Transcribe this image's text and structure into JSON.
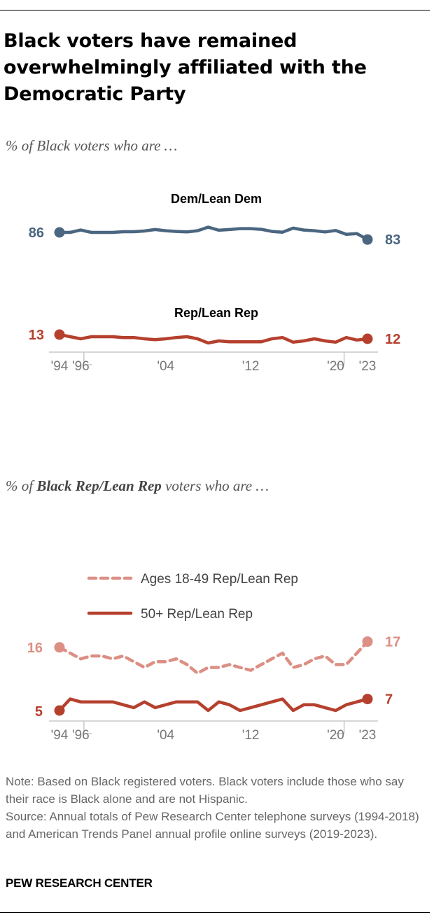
{
  "title": "Black voters have remained overwhelmingly affiliated with the Democratic Party",
  "colors": {
    "dem": "#4a6680",
    "rep": "#b5402e",
    "rep_young": "#dc8f84",
    "axis": "#c8c8c8",
    "tick_text": "#777777"
  },
  "chart_data": [
    {
      "type": "line",
      "subtitle": "% of Black voters who are …",
      "x": [
        1994,
        1995,
        1996,
        1997,
        1998,
        1999,
        2000,
        2001,
        2002,
        2003,
        2004,
        2005,
        2006,
        2007,
        2008,
        2009,
        2010,
        2011,
        2012,
        2013,
        2014,
        2015,
        2016,
        2017,
        2018,
        2019,
        2020,
        2021,
        2022,
        2023
      ],
      "ylim": [
        0,
        100
      ],
      "tick_labels": [
        {
          "x": 1994,
          "label": "'94"
        },
        {
          "x": 1996,
          "label": "'96"
        },
        {
          "x": 2004,
          "label": "'04"
        },
        {
          "x": 2012,
          "label": "'12"
        },
        {
          "x": 2020,
          "label": "'20"
        },
        {
          "x": 2023,
          "label": "'23"
        }
      ],
      "series": [
        {
          "name": "Dem/Lean Dem",
          "values": [
            86,
            86,
            87,
            86,
            86,
            86,
            86.3,
            86.3,
            86.6,
            87.2,
            86.7,
            86.4,
            86.2,
            86.7,
            88.2,
            86.9,
            87.2,
            87.6,
            87.6,
            87.3,
            86.4,
            86.1,
            87.8,
            87,
            86.7,
            86.2,
            86.8,
            85.2,
            85.5,
            83
          ],
          "start_label": "86",
          "end_label": "83"
        },
        {
          "name": "Rep/Lean Rep",
          "values": [
            13,
            12.5,
            12,
            12.5,
            12.5,
            12.5,
            12.3,
            12.3,
            12,
            11.8,
            12,
            12.3,
            12.5,
            12,
            11,
            11.5,
            11.3,
            11.3,
            11.3,
            11.3,
            12,
            12.3,
            11.2,
            11.5,
            12,
            11.5,
            11.2,
            12.3,
            11.7,
            12
          ],
          "start_label": "13",
          "end_label": "12"
        }
      ]
    },
    {
      "type": "line",
      "subtitle_prefix": "% of ",
      "subtitle_bold": "Black Rep/Lean Rep",
      "subtitle_suffix": " voters who are …",
      "x": [
        1994,
        1995,
        1996,
        1997,
        1998,
        1999,
        2000,
        2001,
        2002,
        2003,
        2004,
        2005,
        2006,
        2007,
        2008,
        2009,
        2010,
        2011,
        2012,
        2013,
        2014,
        2015,
        2016,
        2017,
        2018,
        2019,
        2020,
        2021,
        2022,
        2023
      ],
      "ylim": [
        0,
        25
      ],
      "tick_labels": [
        {
          "x": 1994,
          "label": "'94"
        },
        {
          "x": 1996,
          "label": "'96"
        },
        {
          "x": 2004,
          "label": "'04"
        },
        {
          "x": 2012,
          "label": "'12"
        },
        {
          "x": 2020,
          "label": "'20"
        },
        {
          "x": 2023,
          "label": "'23"
        }
      ],
      "legend": [
        "Ages 18-49 Rep/Lean Rep",
        "50+ Rep/Lean Rep"
      ],
      "series": [
        {
          "name": "Ages 18-49 Rep/Lean Rep",
          "style": "dashed",
          "values": [
            16,
            15,
            14,
            14.5,
            14.5,
            14,
            14.5,
            13.5,
            12.5,
            13.5,
            13.5,
            14,
            13,
            11.5,
            12.5,
            12.5,
            13,
            12.5,
            12,
            13,
            14,
            15,
            12.5,
            13,
            14,
            14.5,
            13,
            13,
            15,
            17
          ],
          "start_label": "16",
          "end_label": "17"
        },
        {
          "name": "50+ Rep/Lean Rep",
          "style": "solid",
          "values": [
            5,
            7,
            6.5,
            6.5,
            6.5,
            6.5,
            6,
            5.5,
            6.5,
            5.5,
            6,
            6.5,
            6.5,
            6.5,
            5,
            6.5,
            6,
            5,
            5.5,
            6,
            6.5,
            7,
            5,
            6,
            6,
            5.5,
            5,
            6,
            6.5,
            7
          ],
          "start_label": "5",
          "end_label": "7"
        }
      ]
    }
  ],
  "note": "Note: Based on Black registered voters. Black voters include those who say their race is Black alone and are not Hispanic.",
  "source": "Source: Annual totals of Pew Research Center telephone surveys (1994-2018) and American Trends Panel annual profile online surveys (2019-2023).",
  "brand": "PEW RESEARCH CENTER"
}
